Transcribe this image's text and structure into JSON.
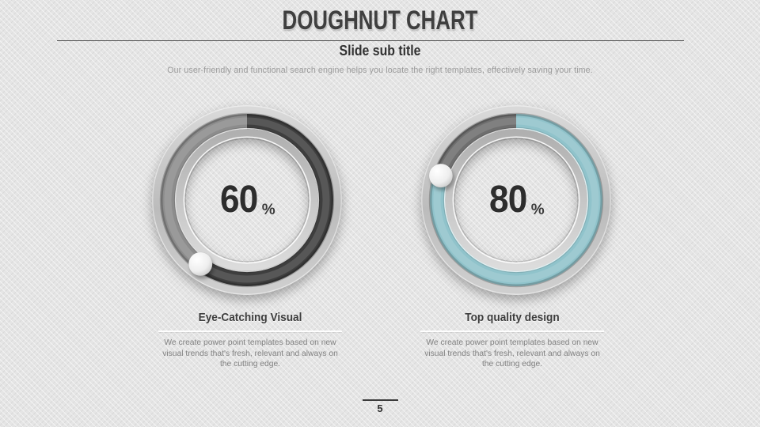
{
  "slide": {
    "title": "DOUGHNUT CHART",
    "subtitle": "Slide sub title",
    "description": "Our user-friendly and functional search engine helps you locate the right templates, effectively saving your time.",
    "page_number": "5"
  },
  "chart_data": [
    {
      "type": "pie",
      "subtype": "doughnut-gauge",
      "value": 60,
      "display_value": "60",
      "unit": "%",
      "start_angle_deg": 0,
      "direction": "clockwise",
      "caption_title": "Eye-Catching Visual",
      "caption_body": "We create power point templates based on new visual trends that's fresh, relevant and always on the cutting edge.",
      "fill_color": "#3e3e3e",
      "track_color": "#8c8c8c"
    },
    {
      "type": "pie",
      "subtype": "doughnut-gauge",
      "value": 80,
      "display_value": "80",
      "unit": "%",
      "start_angle_deg": 0,
      "direction": "clockwise",
      "caption_title": "Top quality design",
      "caption_body": "We create power point templates based on new visual trends that's fresh, relevant and always on the cutting edge.",
      "fill_color": "#90c3cb",
      "track_color": "#6e6e6e"
    }
  ],
  "theme": {
    "background": "#e5e5e5",
    "accent_teal": "#90c3cb",
    "dark_fill": "#3e3e3e",
    "heading_text": "#3f3f3f",
    "muted_text": "#9b9b9b"
  }
}
